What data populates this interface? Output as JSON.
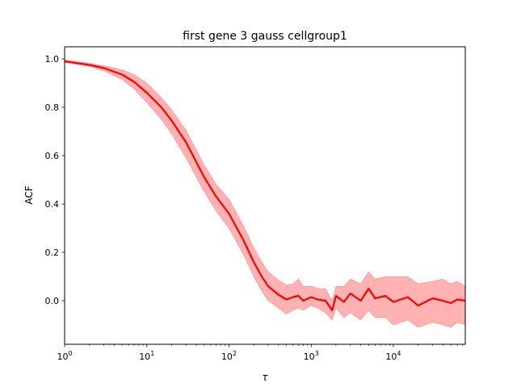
{
  "chart_data": {
    "type": "line",
    "title": "first gene 3 gauss cellgroup1",
    "xlabel": "τ",
    "ylabel": "ACF",
    "x_scale": "log",
    "xlim": [
      1,
      75000
    ],
    "ylim": [
      -0.18,
      1.05
    ],
    "x_ticks": [
      {
        "value": 1,
        "base": "10",
        "exp": "0"
      },
      {
        "value": 10,
        "base": "10",
        "exp": "1"
      },
      {
        "value": 100,
        "base": "10",
        "exp": "2"
      },
      {
        "value": 1000,
        "base": "10",
        "exp": "3"
      },
      {
        "value": 10000,
        "base": "10",
        "exp": "4"
      }
    ],
    "y_ticks": [
      "0.0",
      "0.2",
      "0.4",
      "0.6",
      "0.8",
      "1.0"
    ],
    "grid": false,
    "colors": {
      "line": "#ff0000",
      "band": "#ff0000"
    },
    "series": [
      {
        "x": [
          1,
          2,
          3,
          5,
          7,
          10,
          15,
          20,
          30,
          50,
          70,
          100,
          150,
          200,
          250,
          300,
          400,
          500,
          600,
          700,
          800,
          1000,
          1200,
          1500,
          1800,
          2000,
          2500,
          3000,
          4000,
          5000,
          6000,
          8000,
          10000,
          15000,
          20000,
          30000,
          40000,
          50000,
          60000,
          75000
        ],
        "values": [
          0.99,
          0.975,
          0.962,
          0.935,
          0.905,
          0.86,
          0.8,
          0.745,
          0.655,
          0.51,
          0.43,
          0.36,
          0.25,
          0.16,
          0.1,
          0.06,
          0.025,
          0.005,
          0.015,
          0.02,
          0.0,
          0.015,
          0.005,
          0.0,
          -0.04,
          0.02,
          -0.005,
          0.03,
          0.0,
          0.05,
          0.01,
          0.02,
          -0.005,
          0.015,
          -0.02,
          0.01,
          0.0,
          -0.01,
          0.005,
          0.0
        ],
        "lower": [
          0.985,
          0.968,
          0.95,
          0.915,
          0.875,
          0.82,
          0.75,
          0.69,
          0.59,
          0.45,
          0.37,
          0.3,
          0.19,
          0.1,
          0.04,
          0.0,
          -0.03,
          -0.055,
          -0.04,
          -0.03,
          -0.04,
          -0.02,
          -0.03,
          -0.05,
          -0.08,
          -0.03,
          -0.07,
          -0.05,
          -0.08,
          -0.04,
          -0.07,
          -0.07,
          -0.1,
          -0.08,
          -0.11,
          -0.09,
          -0.1,
          -0.11,
          -0.09,
          -0.1
        ],
        "upper": [
          0.995,
          0.982,
          0.972,
          0.955,
          0.935,
          0.9,
          0.84,
          0.79,
          0.705,
          0.56,
          0.48,
          0.42,
          0.31,
          0.22,
          0.16,
          0.12,
          0.085,
          0.065,
          0.07,
          0.09,
          0.06,
          0.06,
          0.05,
          0.05,
          0.0,
          0.06,
          0.06,
          0.09,
          0.07,
          0.12,
          0.09,
          0.1,
          0.1,
          0.1,
          0.07,
          0.08,
          0.09,
          0.07,
          0.08,
          0.06
        ]
      }
    ]
  }
}
